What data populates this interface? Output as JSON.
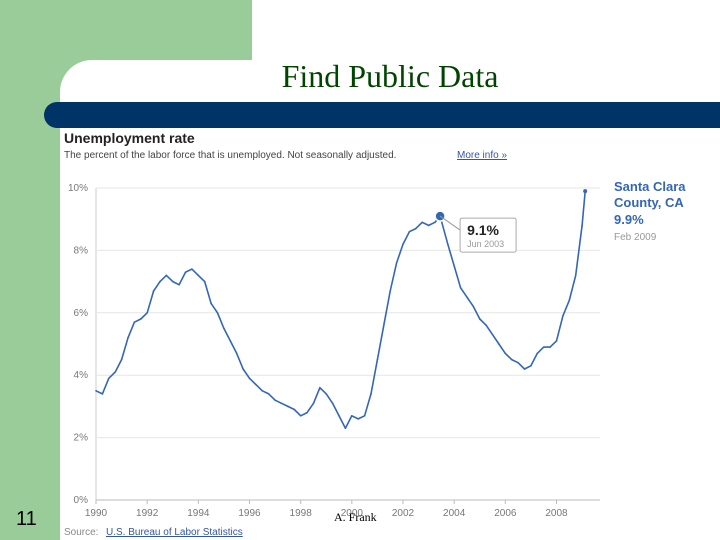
{
  "slide": {
    "title": "Find Public Data",
    "number": "11",
    "footer": "A. Frank"
  },
  "colors": {
    "green_block": "#99cc99",
    "navy_band": "#003366",
    "title_text": "#004400",
    "series_line": "#3366bb"
  },
  "chart_data": {
    "type": "line",
    "title": "Unemployment rate",
    "subtitle": "The percent of the labor force that is unemployed. Not seasonally adjusted.",
    "more_info": "More info »",
    "source_prefix": "Source:",
    "source_link": "U.S. Bureau of Labor Statistics",
    "ylim": [
      0,
      10
    ],
    "yticks": [
      "0%",
      "2%",
      "4%",
      "6%",
      "8%",
      "10%"
    ],
    "xlim": [
      1990,
      2009.7
    ],
    "xticks": [
      "1990",
      "1992",
      "1994",
      "1996",
      "1998",
      "2000",
      "2002",
      "2004",
      "2006",
      "2008"
    ],
    "grid": true,
    "series": [
      {
        "name": "Santa Clara County, CA",
        "name_line1": "Santa Clara",
        "name_line2": "County, CA",
        "latest_value": "9.9%",
        "latest_date": "Feb 2009",
        "x": [
          1990.0,
          1990.25,
          1990.5,
          1990.75,
          1991.0,
          1991.25,
          1991.5,
          1991.75,
          1992.0,
          1992.25,
          1992.5,
          1992.75,
          1993.0,
          1993.25,
          1993.5,
          1993.75,
          1994.0,
          1994.25,
          1994.5,
          1994.75,
          1995.0,
          1995.25,
          1995.5,
          1995.75,
          1996.0,
          1996.25,
          1996.5,
          1996.75,
          1997.0,
          1997.25,
          1997.5,
          1997.75,
          1998.0,
          1998.25,
          1998.5,
          1998.75,
          1999.0,
          1999.25,
          1999.5,
          1999.75,
          2000.0,
          2000.25,
          2000.5,
          2000.75,
          2001.0,
          2001.25,
          2001.5,
          2001.75,
          2002.0,
          2002.25,
          2002.5,
          2002.75,
          2003.0,
          2003.25,
          2003.45,
          2003.75,
          2004.0,
          2004.25,
          2004.5,
          2004.75,
          2005.0,
          2005.25,
          2005.5,
          2005.75,
          2006.0,
          2006.25,
          2006.5,
          2006.75,
          2007.0,
          2007.25,
          2007.5,
          2007.75,
          2008.0,
          2008.25,
          2008.5,
          2008.75,
          2009.0,
          2009.12
        ],
        "y": [
          3.5,
          3.4,
          3.9,
          4.1,
          4.5,
          5.2,
          5.7,
          5.8,
          6.0,
          6.7,
          7.0,
          7.2,
          7.0,
          6.9,
          7.3,
          7.4,
          7.2,
          7.0,
          6.3,
          6.0,
          5.5,
          5.1,
          4.7,
          4.2,
          3.9,
          3.7,
          3.5,
          3.4,
          3.2,
          3.1,
          3.0,
          2.9,
          2.7,
          2.8,
          3.1,
          3.6,
          3.4,
          3.1,
          2.7,
          2.3,
          2.7,
          2.6,
          2.7,
          3.4,
          4.5,
          5.6,
          6.7,
          7.6,
          8.2,
          8.6,
          8.7,
          8.9,
          8.8,
          8.9,
          9.1,
          8.2,
          7.5,
          6.8,
          6.5,
          6.2,
          5.8,
          5.6,
          5.3,
          5.0,
          4.7,
          4.5,
          4.4,
          4.2,
          4.3,
          4.7,
          4.9,
          4.9,
          5.1,
          5.9,
          6.4,
          7.2,
          8.8,
          9.9
        ]
      }
    ],
    "annotation": {
      "value": "9.1%",
      "date": "Jun 2003",
      "x": 2003.45,
      "y": 9.1
    }
  }
}
